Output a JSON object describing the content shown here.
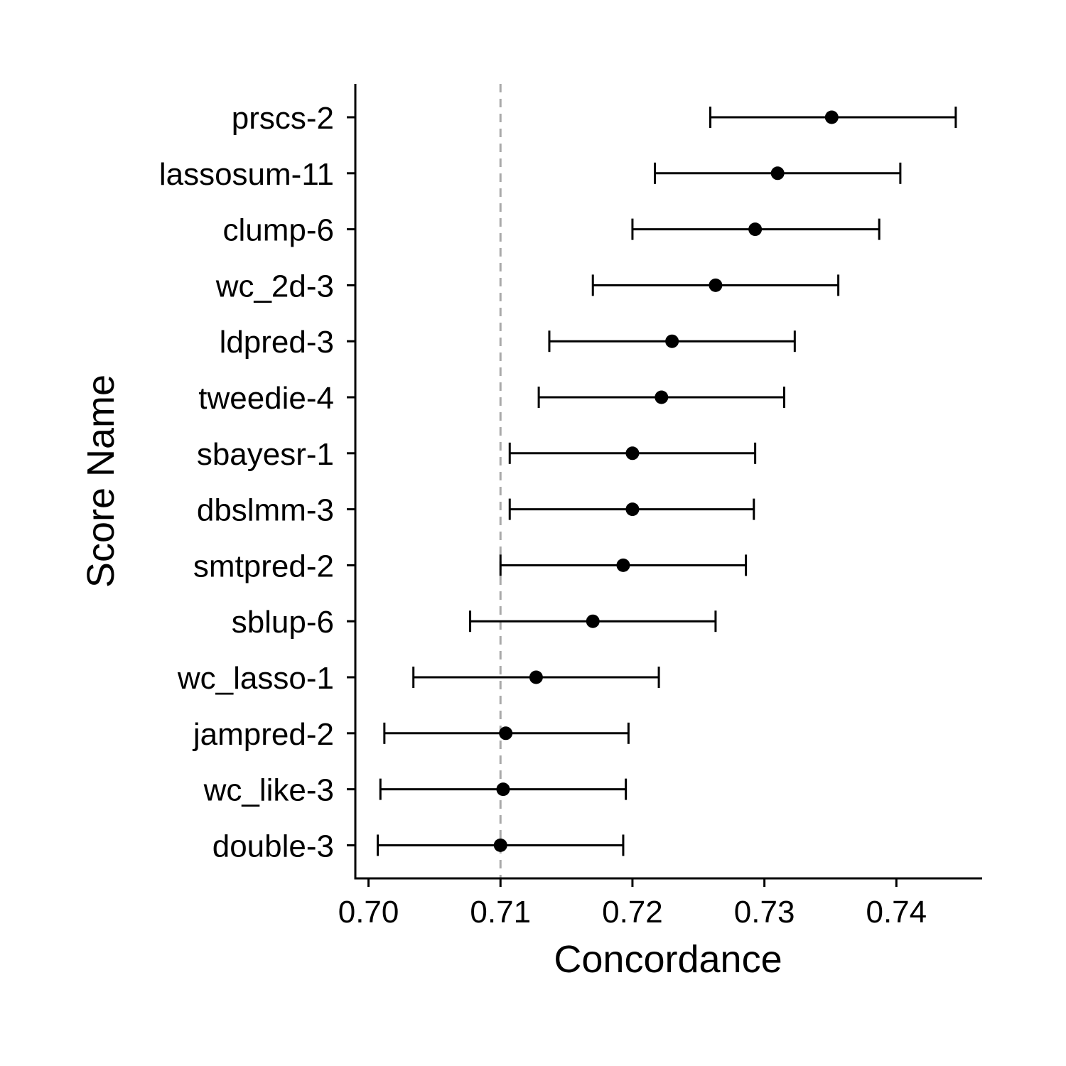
{
  "chart_data": {
    "type": "scatter",
    "subtype": "forest-plot with error bars",
    "xlabel": "Concordance",
    "ylabel": "Score Name",
    "xlim": [
      0.699,
      0.7465
    ],
    "x_ticks": [
      "0.70",
      "0.71",
      "0.72",
      "0.73",
      "0.74"
    ],
    "reference_line": 0.71,
    "grid": false,
    "legend": "none",
    "colors": {
      "points": "#000000",
      "reference_line": "#aaaaaa"
    },
    "points": [
      {
        "label": "prscs-2",
        "estimate": 0.7351,
        "lower": 0.7259,
        "upper": 0.7445
      },
      {
        "label": "lassosum-11",
        "estimate": 0.731,
        "lower": 0.7217,
        "upper": 0.7403
      },
      {
        "label": "clump-6",
        "estimate": 0.7293,
        "lower": 0.72,
        "upper": 0.7387
      },
      {
        "label": "wc_2d-3",
        "estimate": 0.7263,
        "lower": 0.717,
        "upper": 0.7356
      },
      {
        "label": "ldpred-3",
        "estimate": 0.723,
        "lower": 0.7137,
        "upper": 0.7323
      },
      {
        "label": "tweedie-4",
        "estimate": 0.7222,
        "lower": 0.7129,
        "upper": 0.7315
      },
      {
        "label": "sbayesr-1",
        "estimate": 0.72,
        "lower": 0.7107,
        "upper": 0.7293
      },
      {
        "label": "dbslmm-3",
        "estimate": 0.72,
        "lower": 0.7107,
        "upper": 0.7292
      },
      {
        "label": "smtpred-2",
        "estimate": 0.7193,
        "lower": 0.71,
        "upper": 0.7286
      },
      {
        "label": "sblup-6",
        "estimate": 0.717,
        "lower": 0.7077,
        "upper": 0.7263
      },
      {
        "label": "wc_lasso-1",
        "estimate": 0.7127,
        "lower": 0.7034,
        "upper": 0.722
      },
      {
        "label": "jampred-2",
        "estimate": 0.7104,
        "lower": 0.7012,
        "upper": 0.7197
      },
      {
        "label": "wc_like-3",
        "estimate": 0.7102,
        "lower": 0.7009,
        "upper": 0.7195
      },
      {
        "label": "double-3",
        "estimate": 0.71,
        "lower": 0.7007,
        "upper": 0.7193
      }
    ]
  }
}
